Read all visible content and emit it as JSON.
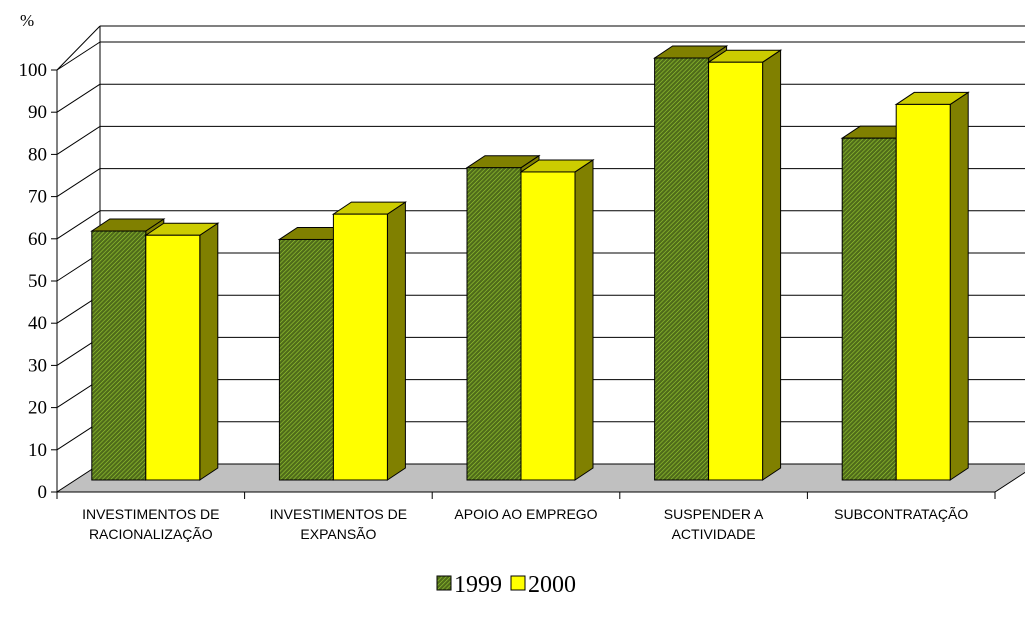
{
  "chart_data": {
    "type": "bar",
    "ylabel": "%",
    "ylim": [
      0,
      100
    ],
    "yticks": [
      0,
      10,
      20,
      30,
      40,
      50,
      60,
      70,
      80,
      90,
      100
    ],
    "categories": [
      [
        "INVESTIMENTOS DE",
        "RACIONALIZAÇÃO"
      ],
      [
        "INVESTIMENTOS DE",
        "EXPANSÃO"
      ],
      [
        "APOIO AO EMPREGO"
      ],
      [
        "SUSPENDER A",
        "ACTIVIDADE"
      ],
      [
        "SUBCONTRATAÇÃO"
      ]
    ],
    "series": [
      {
        "name": "1999",
        "values": [
          59,
          57,
          74,
          100,
          81
        ],
        "color": "#6b8e23",
        "pattern": "hatched"
      },
      {
        "name": "2000",
        "values": [
          58,
          63,
          73,
          99,
          89
        ],
        "color": "#ffff00"
      }
    ],
    "side_color": "#808000",
    "floor_color": "#c0c0c0",
    "grid": true,
    "legend": "bottom-center"
  }
}
